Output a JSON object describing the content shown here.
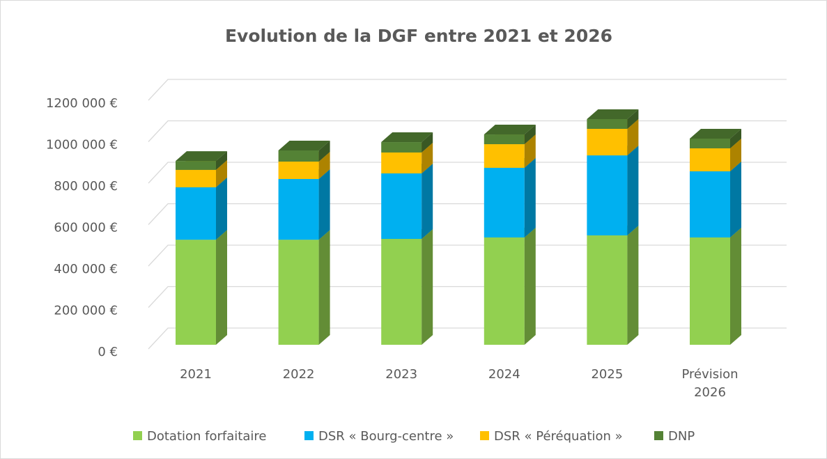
{
  "chart_data": {
    "type": "bar3d_stacked",
    "title": "Evolution de la DGF entre 2021 et 2026",
    "categories": [
      "2021",
      "2022",
      "2023",
      "2024",
      "2025",
      "Prévision 2026"
    ],
    "series": [
      {
        "name": "Dotation forfaitaire",
        "color": "#92d050",
        "values": [
          507000,
          507000,
          511000,
          518000,
          528000,
          518000
        ]
      },
      {
        "name": "DSR « Bourg-centre »",
        "color": "#00b0f0",
        "values": [
          253000,
          293000,
          316000,
          336000,
          386000,
          319000
        ]
      },
      {
        "name": "DSR « Péréquation »",
        "color": "#ffc000",
        "values": [
          84000,
          84000,
          101000,
          114000,
          128000,
          111000
        ]
      },
      {
        "name": "DNP",
        "color": "#548235",
        "values": [
          43000,
          54000,
          50000,
          47000,
          47000,
          47000
        ]
      }
    ],
    "ylim": [
      0,
      1200000
    ],
    "yticks": [
      {
        "value": 0,
        "label": "0 €"
      },
      {
        "value": 200000,
        "label": "200 000 €"
      },
      {
        "value": 400000,
        "label": "400 000 €"
      },
      {
        "value": 600000,
        "label": "600 000 €"
      },
      {
        "value": 800000,
        "label": "800 000 €"
      },
      {
        "value": 1000000,
        "label": "1000 000 €"
      },
      {
        "value": 1200000,
        "label": "1200 000 €"
      }
    ],
    "grid": true,
    "legend": "bottom"
  }
}
